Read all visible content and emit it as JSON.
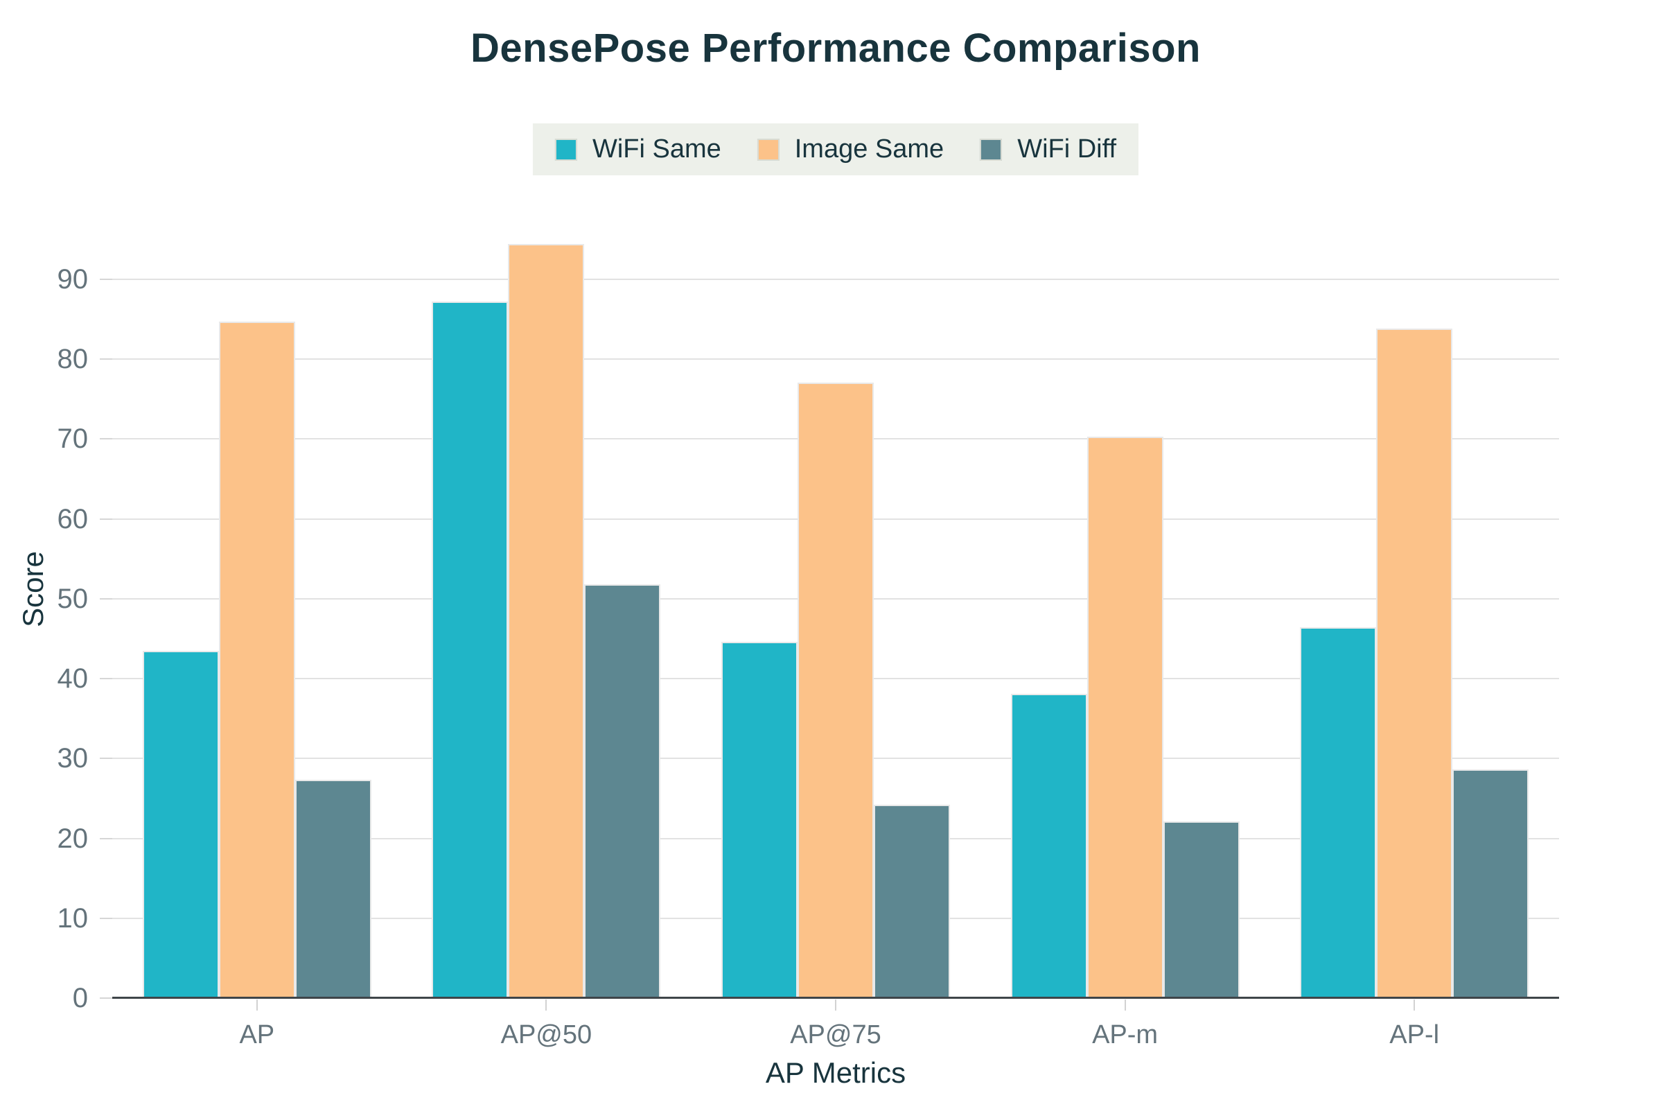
{
  "chart_data": {
    "type": "bar",
    "title": "DensePose Performance Comparison",
    "xlabel": "AP Metrics",
    "ylabel": "Score",
    "categories": [
      "AP",
      "AP@50",
      "AP@75",
      "AP-m",
      "AP-l"
    ],
    "series": [
      {
        "name": "WiFi Same",
        "color": "#20b5c7",
        "values": [
          43.5,
          87.2,
          44.6,
          38.1,
          46.4
        ]
      },
      {
        "name": "Image Same",
        "color": "#fcc289",
        "values": [
          84.7,
          94.4,
          77.1,
          70.3,
          83.8
        ]
      },
      {
        "name": "WiFi Diff",
        "color": "#5d8791",
        "values": [
          27.3,
          51.8,
          24.2,
          22.1,
          28.6
        ]
      }
    ],
    "ylim": [
      0,
      102.4
    ],
    "yticks": [
      0,
      10,
      20,
      30,
      40,
      50,
      60,
      70,
      80,
      90
    ],
    "grid": true,
    "legend_position": "top"
  },
  "colors": {
    "title_text": "#18343d",
    "axis_title_text": "#18343d",
    "legend_text": "#18343d",
    "tick_text": "#64737b",
    "legend_background": "#edf0ea",
    "gridline": "#e2e2e2",
    "axis_line": "#3f4549",
    "background": "#ffffff"
  }
}
